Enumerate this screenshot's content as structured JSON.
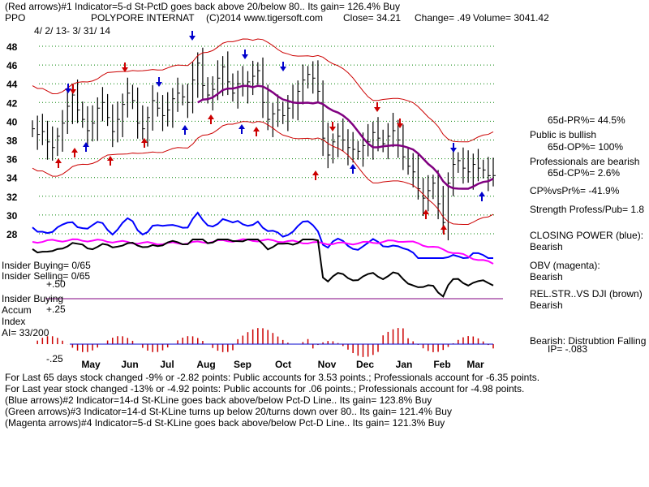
{
  "header": {
    "line1": "(Red arrows)#1 Indicator=5-d St-PctD goes back above 20/below 80.. Its gain= 126.4% Buy",
    "ticker": "PPO",
    "company": "POLYPORE INTERNAT",
    "copyright": "(C)2014 www.tigersoft.com",
    "close": "Close=  34.21",
    "change": "Change= .49",
    "volume": "Volume= 3041.42",
    "date_range": "4/ 2/ 13-  3/ 31/ 14"
  },
  "right_panel": {
    "pr": "65d-PR%= 44.5%",
    "public_bullish": "Public is bullish",
    "op": "65d-OP%= 100%",
    "pros_bearish": "Professionals are bearish",
    "cp": "65d-CP%= 2.6%",
    "cpvspr": "CP%vsPr%= -41.9%",
    "strength": "Strength Profess/Pub= 1.8",
    "closing_power": "CLOSING POWER (blue):",
    "closing_power_val": "Bearish",
    "obv": "OBV (magenta):",
    "obv_val": "Bearish",
    "relstr": "REL.STR..VS DJI (brown)",
    "relstr_val": "Bearish",
    "accum_label": "Bearish: Distrubtion Falling",
    "ip": "IP= -.083"
  },
  "left_panel": {
    "insider_buying": "Insider Buying= 0/65",
    "insider_selling": "Insider Selling= 0/65",
    "plus50": "+.50",
    "insider_buying2": "Insider Buying",
    "accum": "Accum",
    "plus25": "+.25",
    "index": "Index",
    "ai": "AI= 33/200",
    "minus25": "-.25"
  },
  "footer": {
    "line1": "For Last 65 days stock changed -9% or -2.82 points:  Public accounts for  3.53 points.;  Professionals account for -6.35 points.",
    "line2": "For Last year stock changed -13% or -4.92 points:  Public accounts for  .06 points.;  Professionals account for -4.98 points.",
    "line3": "(Blue arrows)#2 Indicator=14-d St-KLine goes back above/below Pct-D Line.. Its gain= 123.8% Buy",
    "line4": "(Green arrows)#3 Indicator=14-d St-KLine turns up below 20/turns down over 80.. Its gain= 121.4% Buy",
    "line5": "(Magenta arrows)#4 Indicator=5-d St-KLine goes back above/below Pct-D Line.. Its gain= 121.3% Buy"
  },
  "colors": {
    "price": "#000000",
    "band": "#cc0000",
    "ma": "#800080",
    "closing_power": "#0000ff",
    "obv": "#ff00ff",
    "relstr": "#000000",
    "dotted": "#cc0000",
    "accum_bar": "#cc0000",
    "grid": "#008000"
  },
  "chart_data": {
    "type": "line",
    "title": "POLYPORE INTERNAT",
    "y_ticks": [
      48,
      46,
      44,
      42,
      40,
      38,
      36,
      34,
      32,
      30,
      28
    ],
    "ylim": [
      27,
      49
    ],
    "x_ticks": [
      "May",
      "Jun",
      "Jul",
      "Aug",
      "Sep",
      "Oct",
      "Nov",
      "Dec",
      "Jan",
      "Feb",
      "Mar"
    ],
    "series": [
      {
        "name": "Close",
        "values": [
          39.2,
          38.6,
          38.9,
          37.8,
          37.2,
          38.4,
          39.8,
          41.6,
          42.8,
          41.2,
          40.2,
          39.0,
          39.8,
          41.4,
          42.0,
          40.4,
          38.9,
          40.2,
          41.8,
          43.0,
          42.2,
          39.8,
          39.2,
          40.4,
          42.2,
          41.4,
          40.6,
          41.2,
          42.4,
          43.0,
          42.6,
          42.0,
          44.4,
          46.2,
          43.8,
          42.8,
          43.4,
          44.6,
          45.8,
          44.2,
          43.0,
          44.0,
          43.8,
          44.2,
          44.8,
          45.4,
          42.0,
          40.2,
          40.8,
          41.2,
          40.6,
          41.4,
          42.0,
          43.2,
          44.4,
          45.0,
          44.6,
          43.2,
          38.2,
          36.4,
          37.8,
          38.4,
          38.0,
          37.2,
          37.0,
          36.8,
          37.4,
          37.8,
          38.8,
          38.2,
          37.6,
          38.4,
          39.0,
          38.0,
          36.2,
          35.2,
          34.6,
          32.8,
          31.8,
          32.6,
          33.4,
          31.2,
          29.2,
          33.4,
          35.4,
          35.8,
          35.0,
          34.6,
          35.4,
          35.0,
          34.8,
          34.2,
          34.21
        ]
      },
      {
        "name": "Closing Power"
      },
      {
        "name": "OBV"
      },
      {
        "name": "Rel.Str vs DJI"
      }
    ]
  },
  "month_label_color": "#000000",
  "price_label_font": "bold"
}
